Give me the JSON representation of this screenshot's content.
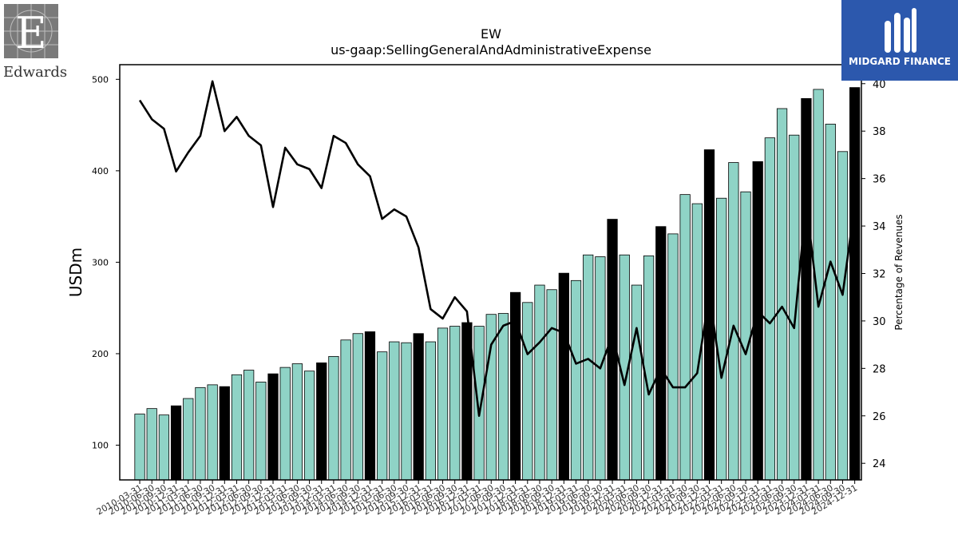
{
  "logos": {
    "left_text": "Edwards",
    "right_text": "MIDGARD FINANCE",
    "right_color": "#2c58ad"
  },
  "chart_data": {
    "type": "bar",
    "title": "EW",
    "subtitle": "us-gaap:SellingGeneralAndAdministrativeExpense",
    "ylabel": "USDm",
    "y2label": "Percentage of Revenues",
    "ylim": [
      62,
      516
    ],
    "y2lim": [
      23.3,
      40.8
    ],
    "yticks": [
      100,
      200,
      300,
      400,
      500
    ],
    "y2ticks": [
      24,
      26,
      28,
      30,
      32,
      34,
      36,
      38,
      40
    ],
    "colors": {
      "bar": "#8fd3c6",
      "bar_highlight": "#000000",
      "line": "#000000"
    },
    "x_tick_labels_note": "labels overlap; rendered as in original",
    "categories": [
      "2010-03-31",
      "2010-06-30",
      "2010-09-30",
      "2010-12-31",
      "2011-03-31",
      "2011-06-30",
      "2011-09-30",
      "2011-12-31",
      "2012-03-31",
      "2012-06-30",
      "2012-09-30",
      "2012-12-31",
      "2013-03-31",
      "2013-06-30",
      "2013-09-30",
      "2013-12-31",
      "2014-03-31",
      "2014-06-30",
      "2014-09-30",
      "2014-12-31",
      "2015-03-31",
      "2015-06-30",
      "2015-09-30",
      "2015-12-31",
      "2016-03-31",
      "2016-06-30",
      "2016-09-30",
      "2016-12-31",
      "2017-03-31",
      "2017-06-30",
      "2017-09-30",
      "2017-12-31",
      "2018-03-31",
      "2018-06-30",
      "2018-09-30",
      "2018-12-31",
      "2019-03-31",
      "2019-06-30",
      "2019-09-30",
      "2019-12-31",
      "2020-03-31",
      "2020-06-30",
      "2020-09-30",
      "2020-12-31",
      "2021-03-31",
      "2021-06-30",
      "2021-09-30",
      "2021-12-31",
      "2022-03-31",
      "2022-06-30",
      "2022-09-30",
      "2022-12-31",
      "2023-03-31",
      "2023-06-30",
      "2023-09-30",
      "2023-12-31",
      "2024-03-31",
      "2024-06-30",
      "2024-09-30",
      "2024-12-31"
    ],
    "series": [
      {
        "kind": "bar",
        "values": [
          134,
          140,
          133,
          143,
          151,
          163,
          166,
          164,
          177,
          182,
          169,
          178,
          185,
          189,
          181,
          190,
          197,
          215,
          222,
          224,
          202,
          213,
          212,
          222,
          213,
          228,
          230,
          234,
          230,
          243,
          244,
          267,
          256,
          275,
          270,
          288,
          280,
          308,
          306,
          347,
          308,
          275,
          307,
          339,
          331,
          374,
          364,
          423,
          370,
          409,
          377,
          410,
          436,
          468,
          439,
          479,
          489,
          451,
          421,
          491
        ],
        "highlight": [
          false,
          false,
          false,
          true,
          false,
          false,
          false,
          true,
          false,
          false,
          false,
          true,
          false,
          false,
          false,
          true,
          false,
          false,
          false,
          true,
          false,
          false,
          false,
          true,
          false,
          false,
          false,
          true,
          false,
          false,
          false,
          true,
          false,
          false,
          false,
          true,
          false,
          false,
          false,
          true,
          false,
          false,
          false,
          true,
          false,
          false,
          false,
          true,
          false,
          false,
          false,
          true,
          false,
          false,
          false,
          true,
          false,
          false,
          false,
          true
        ]
      },
      {
        "kind": "line",
        "axis": "right",
        "values": [
          39.3,
          38.5,
          38.1,
          36.3,
          37.1,
          37.8,
          40.1,
          38.0,
          38.6,
          37.8,
          37.4,
          34.8,
          37.3,
          36.6,
          36.4,
          35.6,
          37.8,
          37.5,
          36.6,
          36.1,
          34.3,
          34.7,
          34.4,
          33.1,
          30.5,
          30.1,
          31.0,
          30.4,
          26.0,
          29.0,
          29.8,
          30.0,
          28.6,
          29.1,
          29.7,
          29.5,
          28.2,
          28.4,
          28.0,
          29.4,
          27.3,
          29.7,
          26.9,
          28.0,
          27.2,
          27.2,
          27.8,
          31.1,
          27.6,
          29.8,
          28.6,
          30.4,
          29.9,
          30.6,
          29.7,
          35.0,
          30.6,
          32.5,
          31.1,
          34.9
        ]
      }
    ]
  }
}
